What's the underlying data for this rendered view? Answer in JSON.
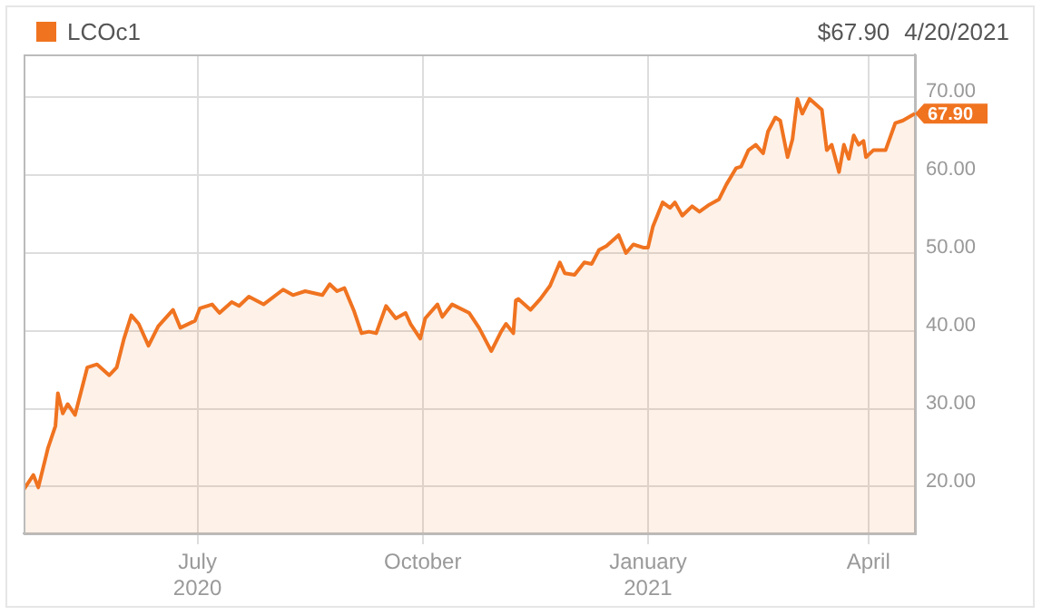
{
  "chart_data": {
    "type": "area",
    "legend": "top left",
    "grid": true,
    "annotations": [
      "$67.90",
      "4/20/2021",
      {
        "text": "67.90",
        "x": "2021-04-20",
        "y": 67.9
      }
    ],
    "xlim": [
      "2020-04-21",
      "2021-04-20"
    ],
    "xticks": [
      {
        "value": "2020-07-01",
        "label": "July\n2020"
      },
      {
        "value": "2020-10-01",
        "label": "October"
      },
      {
        "value": "2021-01-01",
        "label": "January\n2021"
      },
      {
        "value": "2021-04-01",
        "label": "April"
      }
    ],
    "ylim": [
      14,
      75.5
    ],
    "yticks": [
      {
        "value": 20,
        "label": "20.00"
      },
      {
        "value": 30,
        "label": "30.00"
      },
      {
        "value": 40,
        "label": "40.00"
      },
      {
        "value": 50,
        "label": "50.00"
      },
      {
        "value": 60,
        "label": "60.00"
      },
      {
        "value": 70,
        "label": "70.00"
      }
    ],
    "series": [
      {
        "name": "LCOc1",
        "color": "#f07320",
        "x": [
          "2020-04-21",
          "2020-04-25",
          "2020-04-27",
          "2020-05-01",
          "2020-05-04",
          "2020-05-05",
          "2020-05-07",
          "2020-05-09",
          "2020-05-12",
          "2020-05-17",
          "2020-05-21",
          "2020-05-26",
          "2020-05-29",
          "2020-06-01",
          "2020-06-04",
          "2020-06-07",
          "2020-06-11",
          "2020-06-15",
          "2020-06-21",
          "2020-06-24",
          "2020-06-30",
          "2020-07-02",
          "2020-07-07",
          "2020-07-10",
          "2020-07-15",
          "2020-07-18",
          "2020-07-22",
          "2020-07-28",
          "2020-08-05",
          "2020-08-09",
          "2020-08-14",
          "2020-08-21",
          "2020-08-24",
          "2020-08-27",
          "2020-08-30",
          "2020-09-03",
          "2020-09-06",
          "2020-09-09",
          "2020-09-12",
          "2020-09-16",
          "2020-09-20",
          "2020-09-24",
          "2020-09-26",
          "2020-09-30",
          "2020-10-02",
          "2020-10-07",
          "2020-10-09",
          "2020-10-13",
          "2020-10-20",
          "2020-10-24",
          "2020-10-29",
          "2020-11-02",
          "2020-11-04",
          "2020-11-07",
          "2020-11-08",
          "2020-11-09",
          "2020-11-14",
          "2020-11-18",
          "2020-11-22",
          "2020-11-26",
          "2020-11-28",
          "2020-12-02",
          "2020-12-06",
          "2020-12-09",
          "2020-12-12",
          "2020-12-15",
          "2020-12-20",
          "2020-12-23",
          "2020-12-26",
          "2020-12-30",
          "2021-01-01",
          "2021-01-03",
          "2021-01-07",
          "2021-01-10",
          "2021-01-12",
          "2021-01-15",
          "2021-01-19",
          "2021-01-22",
          "2021-01-26",
          "2021-01-30",
          "2021-02-02",
          "2021-02-06",
          "2021-02-08",
          "2021-02-11",
          "2021-02-14",
          "2021-02-17",
          "2021-02-19",
          "2021-02-22",
          "2021-02-24",
          "2021-02-27",
          "2021-03-01",
          "2021-03-03",
          "2021-03-05",
          "2021-03-08",
          "2021-03-13",
          "2021-03-15",
          "2021-03-17",
          "2021-03-20",
          "2021-03-22",
          "2021-03-24",
          "2021-03-26",
          "2021-03-28",
          "2021-03-30",
          "2021-03-31",
          "2021-04-03",
          "2021-04-08",
          "2021-04-12",
          "2021-04-15",
          "2021-04-20"
        ],
        "values": [
          19.6,
          21.5,
          19.9,
          25.0,
          27.8,
          32.0,
          29.4,
          30.6,
          29.2,
          35.3,
          35.7,
          34.3,
          35.3,
          39.0,
          42.0,
          40.9,
          38.1,
          40.6,
          42.7,
          40.4,
          41.3,
          42.9,
          43.4,
          42.3,
          43.7,
          43.2,
          44.4,
          43.4,
          45.3,
          44.6,
          45.1,
          44.6,
          46.0,
          45.1,
          45.5,
          42.5,
          39.7,
          39.9,
          39.7,
          43.2,
          41.6,
          42.3,
          40.9,
          39.0,
          41.6,
          43.4,
          41.8,
          43.4,
          42.3,
          40.4,
          37.4,
          39.9,
          40.9,
          39.7,
          43.9,
          44.1,
          42.7,
          44.1,
          45.8,
          48.8,
          47.4,
          47.2,
          48.8,
          48.6,
          50.4,
          50.9,
          52.3,
          50.0,
          51.1,
          50.7,
          50.7,
          53.4,
          56.5,
          55.8,
          56.5,
          54.8,
          56.0,
          55.3,
          56.2,
          56.9,
          58.8,
          60.9,
          61.1,
          63.2,
          63.9,
          62.8,
          65.6,
          67.4,
          67.0,
          62.3,
          64.6,
          69.8,
          67.9,
          69.8,
          68.4,
          63.2,
          63.9,
          60.4,
          63.9,
          62.1,
          65.1,
          63.9,
          64.4,
          62.3,
          63.2,
          63.2,
          66.7,
          67.0,
          67.9
        ]
      }
    ]
  }
}
